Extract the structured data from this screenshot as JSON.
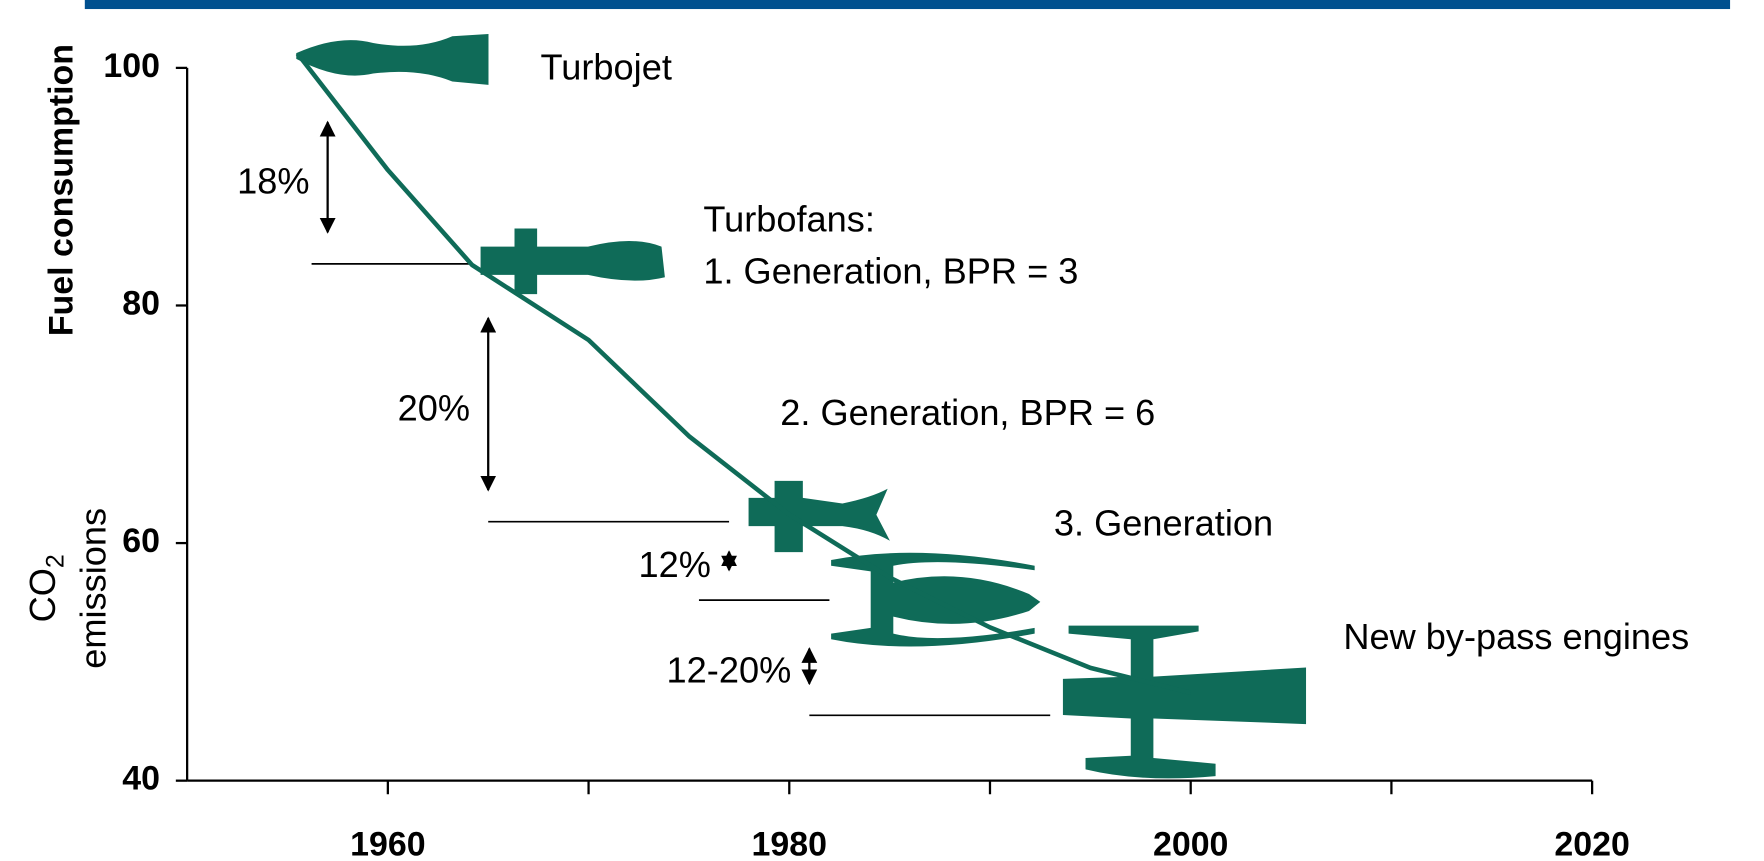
{
  "chart_data": {
    "type": "line",
    "y_title": "Fuel consumption",
    "y_title2": {
      "main": "CO",
      "sub": "2",
      "rest": "emissions"
    },
    "x": [
      1955.5,
      1960,
      1964.2,
      1970,
      1975,
      1980,
      1985,
      1990,
      1995,
      2000
    ],
    "values": [
      101.2,
      91.4,
      83.4,
      77.1,
      69,
      62.4,
      57.1,
      52.9,
      49.5,
      47.4
    ],
    "color": "#0f6b58",
    "xlim": [
      1950,
      2020
    ],
    "xticks": [
      1960,
      1980,
      2000,
      2020
    ],
    "xminorticks": [
      1970,
      1990,
      2010
    ],
    "ylim": [
      40,
      100
    ],
    "yticks": [
      40,
      60,
      80,
      100
    ],
    "annotations": [
      "Turbojet",
      "Turbofans:",
      "1. Generation, BPR = 3",
      "2. Generation, BPR = 6",
      "3. Generation",
      "New by-pass engines"
    ],
    "steps": [
      {
        "label": "18%",
        "x": 1957,
        "top": 100,
        "bottom": 83.5,
        "line_x": [
          1956.2,
          1964.2
        ]
      },
      {
        "label": "20%",
        "x": 1965,
        "top": 83.5,
        "bottom": 61.8,
        "line_x": [
          1965,
          1977
        ]
      },
      {
        "label": "12%",
        "x": 1977,
        "top": 61.8,
        "bottom": 55.2,
        "line_x": [
          1975.5,
          1982
        ]
      },
      {
        "label": "12-20%",
        "x": 1981,
        "top": 55.2,
        "bottom": 45.5,
        "line_x": [
          1981,
          1993
        ]
      }
    ]
  }
}
